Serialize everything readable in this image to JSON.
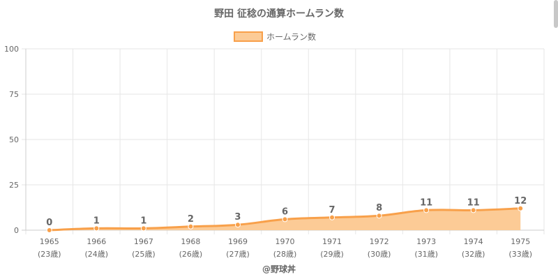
{
  "chart_data": {
    "type": "area",
    "title": "野田 征稔の通算ホームラン数",
    "legend": {
      "label": "ホームラン数",
      "position": "top-center"
    },
    "x": [
      "1965",
      "1966",
      "1967",
      "1968",
      "1969",
      "1970",
      "1971",
      "1972",
      "1973",
      "1974",
      "1975"
    ],
    "x_sublabels": [
      "(23歳)",
      "(24歳)",
      "(25歳)",
      "(26歳)",
      "(27歳)",
      "(28歳)",
      "(29歳)",
      "(30歳)",
      "(31歳)",
      "(32歳)",
      "(33歳)"
    ],
    "series": [
      {
        "name": "ホームラン数",
        "values": [
          0,
          1,
          1,
          2,
          3,
          6,
          7,
          8,
          11,
          11,
          12
        ]
      }
    ],
    "ylim": [
      0,
      100
    ],
    "yticks": [
      0,
      25,
      50,
      75,
      100
    ],
    "grid": true,
    "colors": {
      "line": "#f8a04a",
      "fill": "#fccb96",
      "legend_fill": "#fccb96",
      "legend_border": "#f8a04a",
      "grid": "#e6e6e6",
      "axis": "#cccccc",
      "text": "#666666"
    }
  },
  "footer": {
    "credit": "@野球丼"
  }
}
